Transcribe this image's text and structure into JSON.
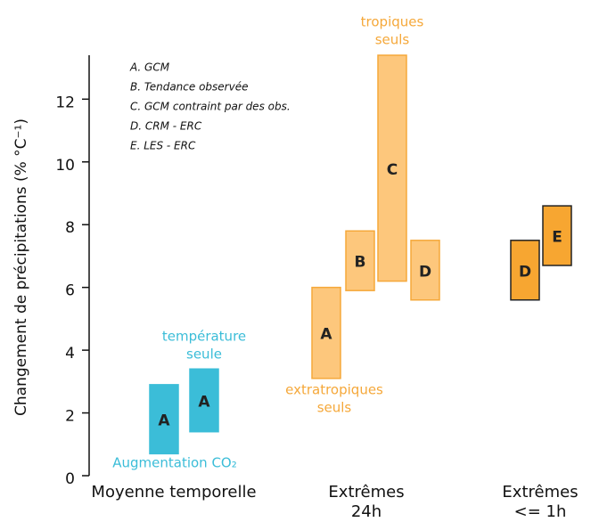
{
  "chart_data": {
    "type": "range-bar",
    "y_label": "Changement de précipitations (% °C⁻¹)",
    "ylim": [
      0,
      13.4
    ],
    "yticks": [
      0,
      2,
      4,
      6,
      8,
      10,
      12
    ],
    "legend": [
      "A. GCM",
      "B. Tendance observée",
      "C. GCM contraint par des obs.",
      "D. CRM - ERC",
      "E. LES - ERC"
    ],
    "groups": [
      {
        "name": [
          "Moyenne temporelle"
        ],
        "bars": [
          {
            "label": "A",
            "low": 0.7,
            "high": 2.9,
            "color": "#3bbdd8",
            "stroke": "#3bbdd8"
          },
          {
            "label": "A",
            "low": 1.4,
            "high": 3.4,
            "color": "#3bbdd8",
            "stroke": "#3bbdd8"
          }
        ]
      },
      {
        "name": [
          "Extrêmes",
          "24h"
        ],
        "bars": [
          {
            "label": "A",
            "low": 3.1,
            "high": 6.0,
            "color": "#fdc77c",
            "stroke": "#f5a83a"
          },
          {
            "label": "B",
            "low": 5.9,
            "high": 7.8,
            "color": "#fdc77c",
            "stroke": "#f5a83a"
          },
          {
            "label": "C",
            "low": 6.2,
            "high": 13.4,
            "color": "#fdc77c",
            "stroke": "#f5a83a"
          },
          {
            "label": "D",
            "low": 5.6,
            "high": 7.5,
            "color": "#fdc77c",
            "stroke": "#f5a83a"
          }
        ]
      },
      {
        "name": [
          "Extrêmes",
          "<= 1h"
        ],
        "bars": [
          {
            "label": "D",
            "low": 5.6,
            "high": 7.5,
            "color": "#f7a631",
            "stroke": "#222222"
          },
          {
            "label": "E",
            "low": 6.7,
            "high": 8.6,
            "color": "#f7a631",
            "stroke": "#222222"
          }
        ]
      }
    ],
    "annotations": [
      {
        "lines": [
          "température",
          "seule"
        ],
        "color": "#3bbdd8"
      },
      {
        "lines": [
          "Augmentation CO₂"
        ],
        "color": "#3bbdd8"
      },
      {
        "lines": [
          "extratropiques",
          "seuls"
        ],
        "color": "#f5a83a"
      },
      {
        "lines": [
          "tropiques",
          "seuls"
        ],
        "color": "#f5a83a"
      }
    ]
  }
}
